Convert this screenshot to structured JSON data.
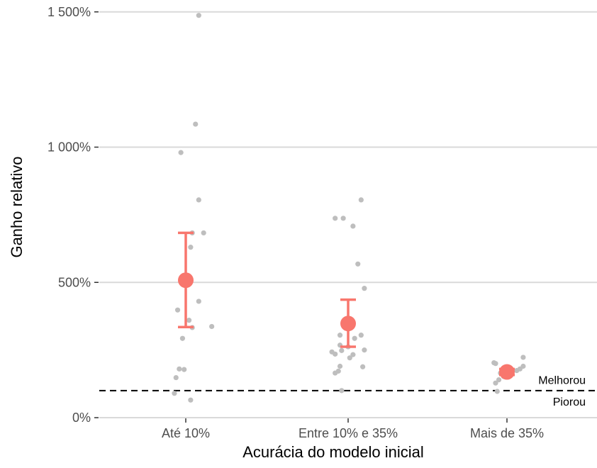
{
  "chart_data": {
    "type": "scatter",
    "xlabel": "Acurácia do modelo inicial",
    "ylabel": "Ganho relativo",
    "categories": [
      "Até 10%",
      "Entre 10% e 35%",
      "Mais de 35%"
    ],
    "y_ticks": [
      0,
      500,
      1000,
      1500
    ],
    "y_tick_labels": [
      "0%",
      "500%",
      "1 000%",
      "1 500%"
    ],
    "ylim": [
      -60,
      1520
    ],
    "grid": "horizontal",
    "reference_line": {
      "y": 100,
      "style": "dashed"
    },
    "annotations": [
      {
        "text": "Melhorou",
        "y": 140
      },
      {
        "text": "Piorou",
        "y": 60
      }
    ],
    "colors": {
      "points": "#bebebe",
      "summary": "#f8766d",
      "grid": "#d9d9d9",
      "ref": "#000000"
    },
    "summary": [
      {
        "category": "Até 10%",
        "mean": 508,
        "lower": 335,
        "upper": 683
      },
      {
        "category": "Entre 10% e 35%",
        "mean": 348,
        "lower": 262,
        "upper": 436
      },
      {
        "category": "Mais de 35%",
        "mean": 169,
        "lower": 158,
        "upper": 180
      }
    ],
    "points": [
      {
        "category": "Até 10%",
        "jitter": 0.08,
        "y": 1487
      },
      {
        "category": "Até 10%",
        "jitter": 0.06,
        "y": 1085
      },
      {
        "category": "Até 10%",
        "jitter": -0.03,
        "y": 980
      },
      {
        "category": "Até 10%",
        "jitter": 0.08,
        "y": 805
      },
      {
        "category": "Até 10%",
        "jitter": 0.04,
        "y": 683
      },
      {
        "category": "Até 10%",
        "jitter": 0.11,
        "y": 683
      },
      {
        "category": "Até 10%",
        "jitter": 0.03,
        "y": 630
      },
      {
        "category": "Até 10%",
        "jitter": 0.08,
        "y": 430
      },
      {
        "category": "Até 10%",
        "jitter": -0.05,
        "y": 398
      },
      {
        "category": "Até 10%",
        "jitter": 0.02,
        "y": 360
      },
      {
        "category": "Até 10%",
        "jitter": 0.16,
        "y": 337
      },
      {
        "category": "Até 10%",
        "jitter": 0.04,
        "y": 333
      },
      {
        "category": "Até 10%",
        "jitter": -0.02,
        "y": 293
      },
      {
        "category": "Até 10%",
        "jitter": -0.04,
        "y": 180
      },
      {
        "category": "Até 10%",
        "jitter": -0.01,
        "y": 178
      },
      {
        "category": "Até 10%",
        "jitter": -0.06,
        "y": 148
      },
      {
        "category": "Até 10%",
        "jitter": -0.07,
        "y": 90
      },
      {
        "category": "Até 10%",
        "jitter": 0.03,
        "y": 65
      },
      {
        "category": "Entre 10% e 35%",
        "jitter": 0.08,
        "y": 805
      },
      {
        "category": "Entre 10% e 35%",
        "jitter": -0.08,
        "y": 737
      },
      {
        "category": "Entre 10% e 35%",
        "jitter": -0.03,
        "y": 737
      },
      {
        "category": "Entre 10% e 35%",
        "jitter": 0.03,
        "y": 708
      },
      {
        "category": "Entre 10% e 35%",
        "jitter": 0.06,
        "y": 568
      },
      {
        "category": "Entre 10% e 35%",
        "jitter": 0.1,
        "y": 478
      },
      {
        "category": "Entre 10% e 35%",
        "jitter": -0.05,
        "y": 305
      },
      {
        "category": "Entre 10% e 35%",
        "jitter": 0.08,
        "y": 305
      },
      {
        "category": "Entre 10% e 35%",
        "jitter": 0.04,
        "y": 293
      },
      {
        "category": "Entre 10% e 35%",
        "jitter": -0.05,
        "y": 268
      },
      {
        "category": "Entre 10% e 35%",
        "jitter": 0.0,
        "y": 262
      },
      {
        "category": "Entre 10% e 35%",
        "jitter": -0.1,
        "y": 243
      },
      {
        "category": "Entre 10% e 35%",
        "jitter": -0.04,
        "y": 248
      },
      {
        "category": "Entre 10% e 35%",
        "jitter": 0.1,
        "y": 250
      },
      {
        "category": "Entre 10% e 35%",
        "jitter": -0.08,
        "y": 235
      },
      {
        "category": "Entre 10% e 35%",
        "jitter": 0.03,
        "y": 233
      },
      {
        "category": "Entre 10% e 35%",
        "jitter": 0.01,
        "y": 221
      },
      {
        "category": "Entre 10% e 35%",
        "jitter": -0.05,
        "y": 190
      },
      {
        "category": "Entre 10% e 35%",
        "jitter": 0.09,
        "y": 188
      },
      {
        "category": "Entre 10% e 35%",
        "jitter": -0.06,
        "y": 172
      },
      {
        "category": "Entre 10% e 35%",
        "jitter": -0.08,
        "y": 165
      },
      {
        "category": "Entre 10% e 35%",
        "jitter": -0.04,
        "y": 100
      },
      {
        "category": "Mais de 35%",
        "jitter": -0.08,
        "y": 203
      },
      {
        "category": "Mais de 35%",
        "jitter": -0.07,
        "y": 200
      },
      {
        "category": "Mais de 35%",
        "jitter": 0.1,
        "y": 223
      },
      {
        "category": "Mais de 35%",
        "jitter": 0.1,
        "y": 190
      },
      {
        "category": "Mais de 35%",
        "jitter": 0.08,
        "y": 180
      },
      {
        "category": "Mais de 35%",
        "jitter": 0.06,
        "y": 174
      },
      {
        "category": "Mais de 35%",
        "jitter": 0.03,
        "y": 175
      },
      {
        "category": "Mais de 35%",
        "jitter": -0.04,
        "y": 165
      },
      {
        "category": "Mais de 35%",
        "jitter": -0.02,
        "y": 152
      },
      {
        "category": "Mais de 35%",
        "jitter": -0.05,
        "y": 140
      },
      {
        "category": "Mais de 35%",
        "jitter": -0.07,
        "y": 128
      },
      {
        "category": "Mais de 35%",
        "jitter": -0.06,
        "y": 97
      }
    ]
  }
}
